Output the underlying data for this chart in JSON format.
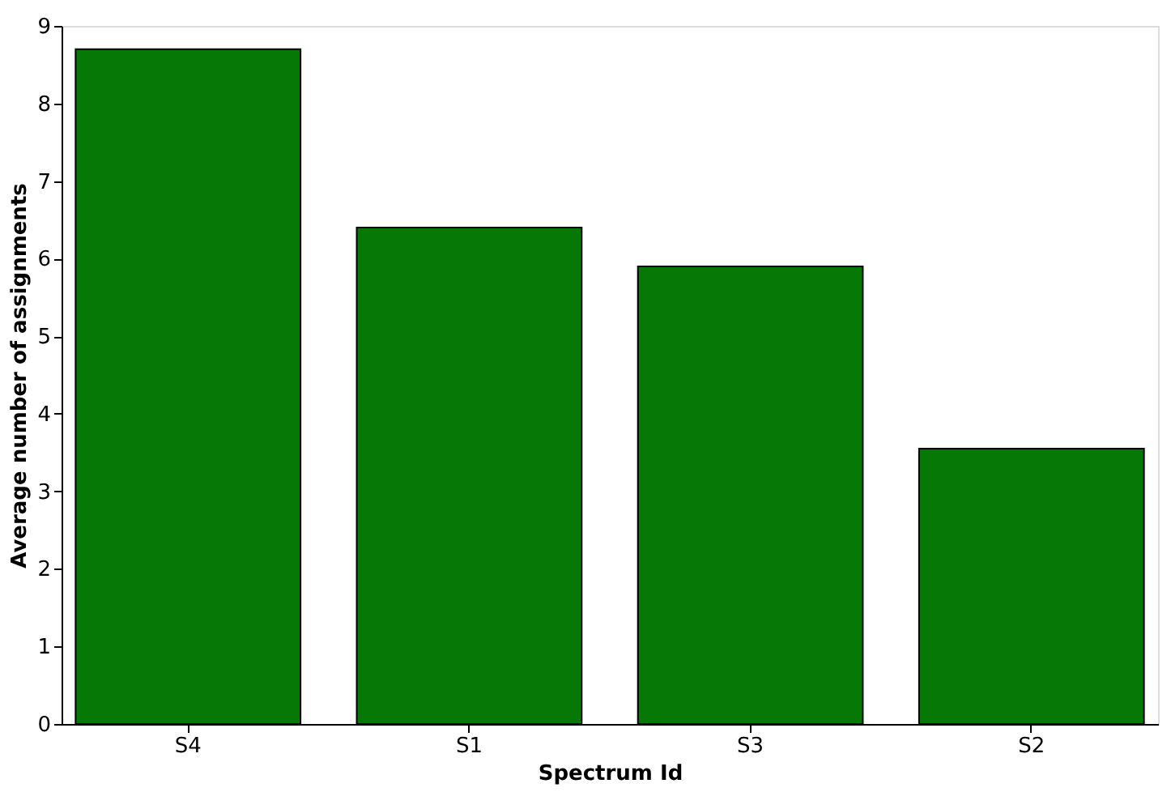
{
  "chart_data": {
    "type": "bar",
    "xlabel": "Spectrum Id",
    "ylabel": "Average number of assignments",
    "categories": [
      "S4",
      "S1",
      "S3",
      "S2"
    ],
    "values": [
      8.7,
      6.4,
      5.9,
      3.55
    ],
    "color": "#067806",
    "ylim": [
      0,
      9
    ],
    "yticks": [
      0,
      1,
      2,
      3,
      4,
      5,
      6,
      7,
      8,
      9
    ],
    "grid": false
  }
}
